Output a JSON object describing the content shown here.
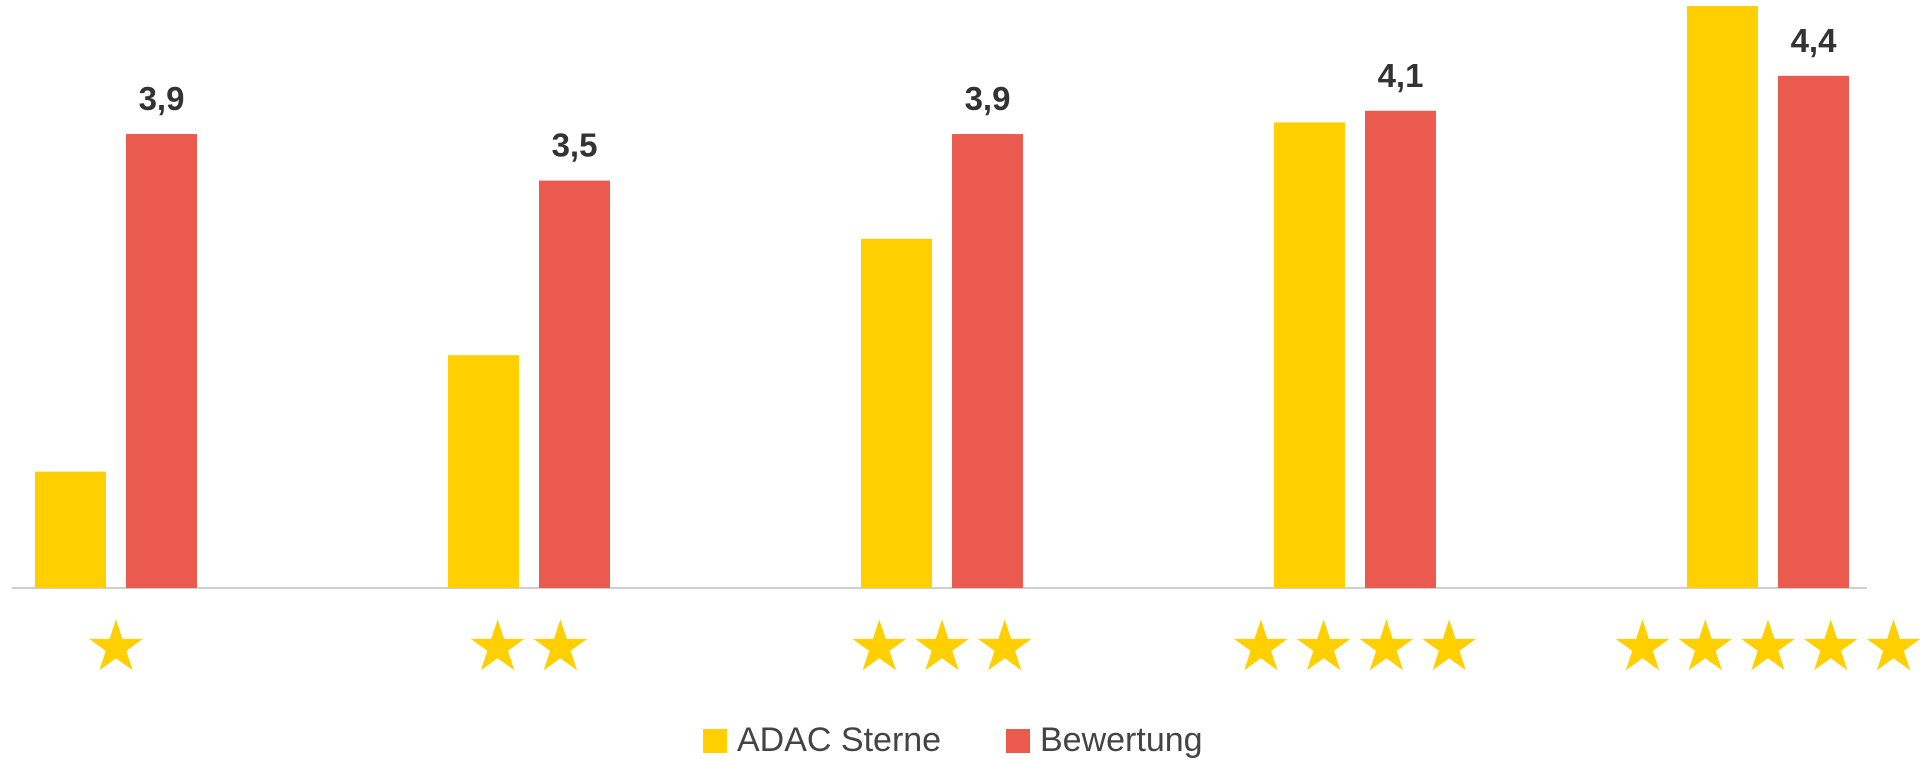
{
  "chart_data": {
    "type": "bar",
    "categories": [
      "★",
      "★★",
      "★★★",
      "★★★★",
      "★★★★★"
    ],
    "series": [
      {
        "name": "ADAC Sterne",
        "color": "#FFCF00",
        "values": [
          1,
          2,
          3,
          4,
          5
        ]
      },
      {
        "name": "Bewertung",
        "color": "#EB5A4E",
        "values": [
          3.9,
          3.5,
          3.9,
          4.1,
          4.4
        ],
        "value_labels": [
          "3,9",
          "3,5",
          "3,9",
          "4,1",
          "4,4"
        ]
      }
    ],
    "ylim": [
      0,
      5
    ],
    "category_color": "#FFCF00"
  }
}
